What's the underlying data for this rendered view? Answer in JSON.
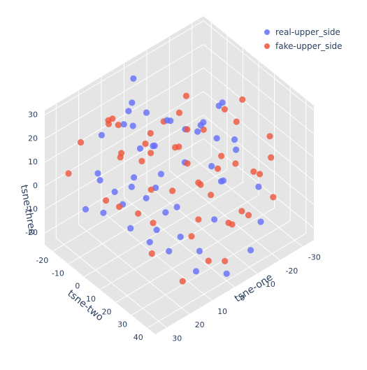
{
  "chart_data": {
    "type": "scatter",
    "subtype": "scatter3d",
    "axes": {
      "x": {
        "label": "tsne-one",
        "ticks": [
          "-30",
          "-20",
          "-10",
          "0",
          "10",
          "20",
          "30"
        ]
      },
      "y": {
        "label": "tsne-two",
        "ticks": [
          "-20",
          "-10",
          "0",
          "10",
          "20",
          "30",
          "40"
        ]
      },
      "z": {
        "label": "tsne-three",
        "ticks": [
          "-20",
          "-10",
          "0",
          "10",
          "20",
          "30"
        ]
      }
    },
    "xlim": [
      -35,
      35
    ],
    "ylim": [
      -25,
      45
    ],
    "zlim": [
      -25,
      32
    ],
    "grid": true,
    "legend_position": "top-right",
    "series": [
      {
        "name": "real-upper_side",
        "color": "#636efa",
        "points": [
          [
            28,
            0,
            12
          ],
          [
            25,
            5,
            8
          ],
          [
            20,
            10,
            14
          ],
          [
            15,
            20,
            18
          ],
          [
            10,
            -5,
            22
          ],
          [
            5,
            -15,
            20
          ],
          [
            0,
            -20,
            18
          ],
          [
            -5,
            -18,
            12
          ],
          [
            -10,
            -10,
            10
          ],
          [
            -15,
            0,
            8
          ],
          [
            -20,
            5,
            5
          ],
          [
            -25,
            10,
            0
          ],
          [
            -15,
            15,
            -5
          ],
          [
            -5,
            25,
            -10
          ],
          [
            5,
            30,
            -15
          ],
          [
            10,
            35,
            -18
          ],
          [
            15,
            25,
            -12
          ],
          [
            20,
            20,
            -8
          ],
          [
            25,
            15,
            -2
          ],
          [
            30,
            5,
            2
          ],
          [
            22,
            -10,
            6
          ],
          [
            12,
            -22,
            10
          ],
          [
            2,
            -12,
            4
          ],
          [
            -8,
            2,
            0
          ],
          [
            -18,
            12,
            -8
          ],
          [
            -28,
            20,
            -12
          ],
          [
            -22,
            30,
            -18
          ],
          [
            -12,
            38,
            -20
          ],
          [
            0,
            40,
            -22
          ],
          [
            8,
            20,
            0
          ],
          [
            18,
            0,
            -4
          ],
          [
            26,
            -12,
            -8
          ],
          [
            14,
            -5,
            25
          ],
          [
            4,
            8,
            28
          ],
          [
            -6,
            15,
            24
          ],
          [
            -16,
            22,
            16
          ],
          [
            -26,
            0,
            14
          ],
          [
            -30,
            -8,
            6
          ],
          [
            -20,
            -15,
            -2
          ],
          [
            -10,
            -20,
            -6
          ],
          [
            0,
            -5,
            -10
          ],
          [
            10,
            10,
            -14
          ],
          [
            20,
            30,
            10
          ],
          [
            28,
            20,
            20
          ],
          [
            -2,
            -22,
            26
          ],
          [
            6,
            2,
            15
          ],
          [
            -12,
            8,
            18
          ],
          [
            16,
            12,
            4
          ],
          [
            -24,
            -4,
            -14
          ],
          [
            12,
            28,
            -6
          ]
        ]
      },
      {
        "name": "fake-upper_side",
        "color": "#ef553b",
        "points": [
          [
            26,
            10,
            26
          ],
          [
            20,
            2,
            20
          ],
          [
            14,
            12,
            22
          ],
          [
            8,
            0,
            16
          ],
          [
            2,
            18,
            14
          ],
          [
            -4,
            4,
            10
          ],
          [
            -10,
            20,
            6
          ],
          [
            -16,
            -8,
            4
          ],
          [
            -22,
            14,
            -2
          ],
          [
            -28,
            6,
            8
          ],
          [
            -30,
            25,
            2
          ],
          [
            -24,
            35,
            -6
          ],
          [
            -18,
            28,
            -14
          ],
          [
            -8,
            32,
            -10
          ],
          [
            2,
            25,
            -6
          ],
          [
            12,
            35,
            -2
          ],
          [
            22,
            25,
            4
          ],
          [
            30,
            15,
            10
          ],
          [
            24,
            -18,
            16
          ],
          [
            16,
            -12,
            24
          ],
          [
            6,
            -20,
            12
          ],
          [
            -4,
            -14,
            6
          ],
          [
            -14,
            -20,
            2
          ],
          [
            -26,
            -12,
            -4
          ],
          [
            -32,
            4,
            14
          ],
          [
            -20,
            10,
            20
          ],
          [
            -10,
            0,
            26
          ],
          [
            0,
            10,
            30
          ],
          [
            10,
            20,
            8
          ],
          [
            18,
            38,
            -16
          ],
          [
            8,
            40,
            -12
          ],
          [
            -2,
            36,
            -20
          ],
          [
            -12,
            24,
            -16
          ],
          [
            -22,
            18,
            -20
          ],
          [
            4,
            -8,
            2
          ],
          [
            14,
            4,
            -8
          ],
          [
            24,
            -2,
            0
          ],
          [
            28,
            -20,
            4
          ],
          [
            -6,
            28,
            18
          ],
          [
            -16,
            38,
            10
          ],
          [
            -26,
            30,
            16
          ],
          [
            10,
            -18,
            18
          ],
          [
            18,
            18,
            12
          ],
          [
            -8,
            12,
            -4
          ],
          [
            0,
            30,
            6
          ],
          [
            20,
            -6,
            28
          ],
          [
            -14,
            2,
            -12
          ],
          [
            6,
            16,
            22
          ],
          [
            -30,
            14,
            -10
          ],
          [
            26,
            30,
            -4
          ]
        ]
      }
    ]
  }
}
